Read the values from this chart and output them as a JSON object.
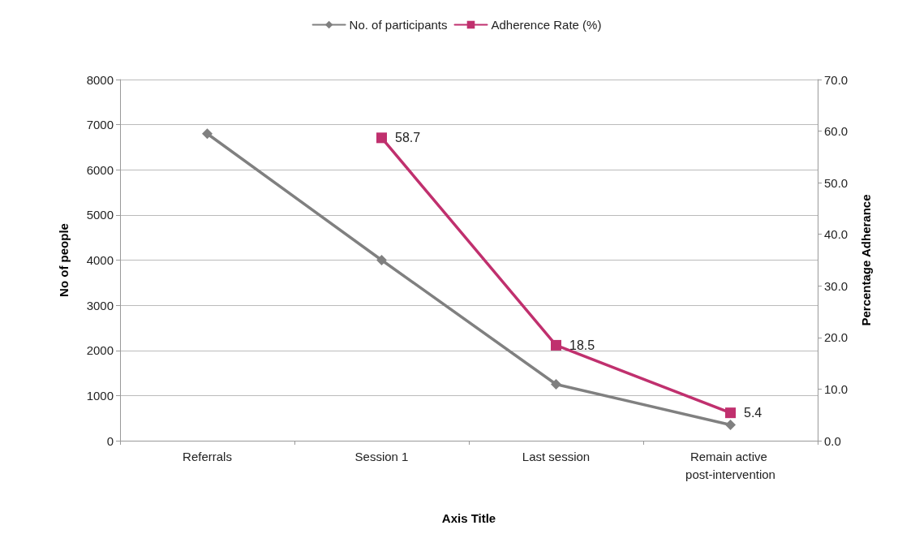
{
  "chart_data": {
    "type": "line",
    "xlabel": "Axis Title",
    "ylabel": "No of people",
    "y2label": "Percentage Adherance",
    "categories": [
      "Referrals",
      "Session 1",
      "Last session",
      "Remain active post-intervention"
    ],
    "series": [
      {
        "name": "No. of participants",
        "color": "#808080",
        "marker": "diamond",
        "values": [
          6800,
          4000,
          1250,
          350
        ]
      },
      {
        "name": "Adherence Rate (%)",
        "color": "#c0306e",
        "marker": "square",
        "axis": "y2",
        "values": [
          null,
          58.7,
          18.5,
          5.4
        ],
        "value_labels": [
          null,
          "58.7",
          "18.5",
          "5.4"
        ]
      }
    ],
    "ylim": [
      0,
      8000
    ],
    "yticks": [
      0,
      1000,
      2000,
      3000,
      4000,
      5000,
      6000,
      7000,
      8000
    ],
    "y2lim": [
      0,
      70
    ],
    "y2ticks": [
      {
        "value": 0,
        "label": "0.0"
      },
      {
        "value": 10,
        "label": "10.0"
      },
      {
        "value": 20,
        "label": "20.0"
      },
      {
        "value": 30,
        "label": "30.0"
      },
      {
        "value": 40,
        "label": "40.0"
      },
      {
        "value": 50,
        "label": "50.0"
      },
      {
        "value": 60,
        "label": "60.0"
      },
      {
        "value": 70,
        "label": "70.0"
      }
    ],
    "grid": "y",
    "legend": "top",
    "line_style": "solid"
  }
}
